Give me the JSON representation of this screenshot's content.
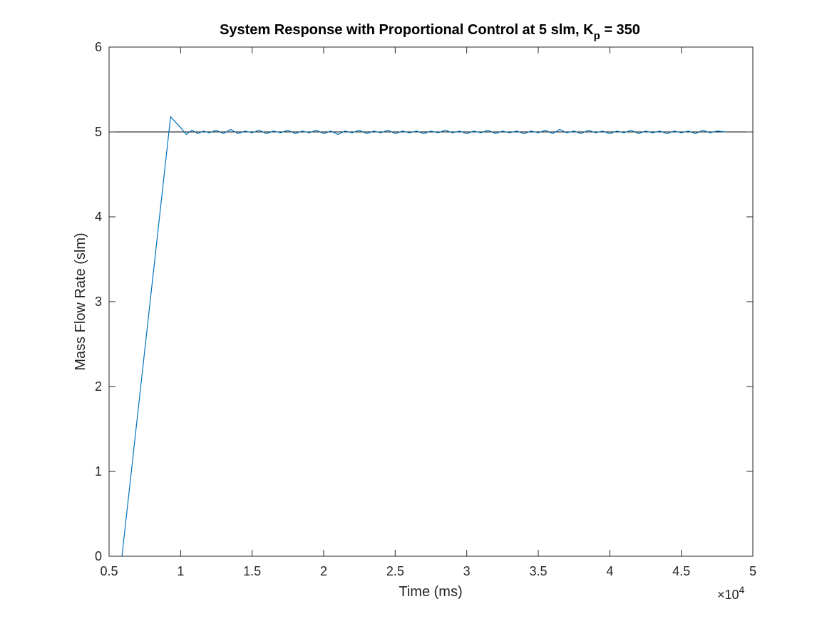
{
  "chart_data": {
    "type": "line",
    "title": {
      "prefix": "System Response with Proportional Control at 5 slm, K",
      "subscript": "p",
      "suffix": " = 350"
    },
    "xlabel": "Time (ms)",
    "ylabel": "Mass Flow Rate (slm)",
    "x_exponent_label": {
      "base": "×10",
      "exponent": "4"
    },
    "xlim": [
      0.5,
      5
    ],
    "ylim": [
      0,
      6
    ],
    "x_scale_factor": 10000,
    "xticks": [
      0.5,
      1,
      1.5,
      2,
      2.5,
      3,
      3.5,
      4,
      4.5,
      5
    ],
    "xtick_labels": [
      "0.5",
      "1",
      "1.5",
      "2",
      "2.5",
      "3",
      "3.5",
      "4",
      "4.5",
      "5"
    ],
    "yticks": [
      0,
      1,
      2,
      3,
      4,
      5,
      6
    ],
    "ytick_labels": [
      "0",
      "1",
      "2",
      "3",
      "4",
      "5",
      "6"
    ],
    "grid": false,
    "box": true,
    "reference_line": {
      "y": 5,
      "color": "#000000"
    },
    "series": [
      {
        "color": "#0072BD",
        "points": [
          [
            5900,
            0
          ],
          [
            9300,
            5.18
          ],
          [
            10000,
            5.05
          ],
          [
            10400,
            4.97
          ],
          [
            10800,
            5.02
          ],
          [
            11200,
            4.98
          ],
          [
            11600,
            5.01
          ],
          [
            12000,
            4.99
          ],
          [
            12500,
            5.02
          ],
          [
            13000,
            4.98
          ],
          [
            13500,
            5.03
          ],
          [
            14000,
            4.98
          ],
          [
            14500,
            5.01
          ],
          [
            15000,
            4.99
          ],
          [
            15500,
            5.02
          ],
          [
            16000,
            4.98
          ],
          [
            16500,
            5.01
          ],
          [
            17000,
            4.99
          ],
          [
            17500,
            5.02
          ],
          [
            18000,
            4.98
          ],
          [
            18500,
            5.01
          ],
          [
            19000,
            4.99
          ],
          [
            19500,
            5.02
          ],
          [
            20000,
            4.98
          ],
          [
            20500,
            5.01
          ],
          [
            21000,
            4.97
          ],
          [
            21500,
            5.01
          ],
          [
            22000,
            4.99
          ],
          [
            22500,
            5.02
          ],
          [
            23000,
            4.98
          ],
          [
            23500,
            5.01
          ],
          [
            24000,
            4.99
          ],
          [
            24500,
            5.02
          ],
          [
            25000,
            4.98
          ],
          [
            25500,
            5.01
          ],
          [
            26000,
            4.99
          ],
          [
            26500,
            5.01
          ],
          [
            27000,
            4.98
          ],
          [
            27500,
            5.01
          ],
          [
            28000,
            4.99
          ],
          [
            28500,
            5.02
          ],
          [
            29000,
            4.99
          ],
          [
            29500,
            5.01
          ],
          [
            30000,
            4.98
          ],
          [
            30500,
            5.01
          ],
          [
            31000,
            4.99
          ],
          [
            31500,
            5.02
          ],
          [
            32000,
            4.98
          ],
          [
            32500,
            5.01
          ],
          [
            33000,
            4.99
          ],
          [
            33500,
            5.01
          ],
          [
            34000,
            4.98
          ],
          [
            34500,
            5.01
          ],
          [
            35000,
            4.99
          ],
          [
            35500,
            5.02
          ],
          [
            36000,
            4.98
          ],
          [
            36500,
            5.03
          ],
          [
            37000,
            4.99
          ],
          [
            37500,
            5.01
          ],
          [
            38000,
            4.98
          ],
          [
            38500,
            5.02
          ],
          [
            39000,
            4.99
          ],
          [
            39500,
            5.01
          ],
          [
            40000,
            4.98
          ],
          [
            40500,
            5.01
          ],
          [
            41000,
            4.99
          ],
          [
            41500,
            5.02
          ],
          [
            42000,
            4.98
          ],
          [
            42500,
            5.01
          ],
          [
            43000,
            4.99
          ],
          [
            43500,
            5.01
          ],
          [
            44000,
            4.98
          ],
          [
            44500,
            5.01
          ],
          [
            45000,
            4.99
          ],
          [
            45500,
            5.01
          ],
          [
            46000,
            4.98
          ],
          [
            46500,
            5.02
          ],
          [
            47000,
            4.99
          ],
          [
            47500,
            5.01
          ],
          [
            48100,
            5.0
          ]
        ]
      }
    ]
  }
}
